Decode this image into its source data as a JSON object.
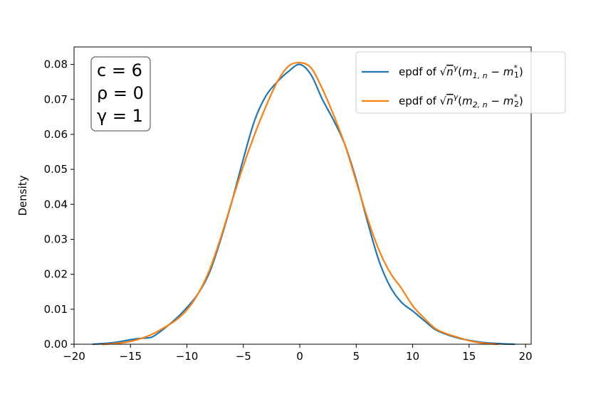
{
  "chart_data": {
    "type": "line",
    "ylabel": "Density",
    "xlabel": "",
    "title": "",
    "xlim": [
      -20,
      20.5
    ],
    "ylim": [
      0,
      0.085
    ],
    "x_ticks": [
      -20,
      -15,
      -10,
      -5,
      0,
      5,
      10,
      15,
      20
    ],
    "x_tick_labels": [
      "−20",
      "−15",
      "−10",
      "−5",
      "0",
      "5",
      "10",
      "15",
      "20"
    ],
    "y_ticks": [
      0,
      0.01,
      0.02,
      0.03,
      0.04,
      0.05,
      0.06,
      0.07,
      0.08
    ],
    "y_tick_labels": [
      "0.00",
      "0.01",
      "0.02",
      "0.03",
      "0.04",
      "0.05",
      "0.06",
      "0.07",
      "0.08"
    ],
    "grid": false,
    "legend_position": "top-right",
    "annotation": {
      "lines": [
        "c = 6",
        "ρ = 0",
        "γ = 1"
      ]
    },
    "series": [
      {
        "name": "epdf of √nγ(m1,n − m1*)",
        "legend_label": {
          "prefix": "epdf of ",
          "sub": "1, n",
          "star_sub": "1"
        },
        "color": "#1f77b4",
        "x": [
          -18.3,
          -17,
          -16,
          -15,
          -14,
          -13.5,
          -13,
          -12,
          -11,
          -10,
          -9,
          -8,
          -7,
          -6,
          -5,
          -4,
          -3,
          -2,
          -1,
          0,
          1,
          2,
          3,
          4,
          5,
          6,
          7,
          8,
          9,
          10,
          11,
          12,
          13,
          14,
          15,
          16,
          17,
          18,
          19
        ],
        "y": [
          0.0,
          0.0003,
          0.0007,
          0.0013,
          0.0017,
          0.0018,
          0.0022,
          0.0045,
          0.0072,
          0.0105,
          0.0145,
          0.0205,
          0.03,
          0.041,
          0.053,
          0.064,
          0.071,
          0.075,
          0.078,
          0.08,
          0.077,
          0.07,
          0.064,
          0.057,
          0.047,
          0.035,
          0.024,
          0.0165,
          0.012,
          0.0095,
          0.0068,
          0.0042,
          0.0028,
          0.0018,
          0.0011,
          0.0006,
          0.0003,
          0.0001,
          0.0
        ]
      },
      {
        "name": "epdf of √nγ(m2,n − m2*)",
        "legend_label": {
          "prefix": "epdf of ",
          "sub": "2, n",
          "star_sub": "2"
        },
        "color": "#ff7f0e",
        "x": [
          -17.5,
          -16,
          -15,
          -14,
          -13,
          -12,
          -11,
          -10,
          -9,
          -8,
          -7,
          -6,
          -5,
          -4,
          -3,
          -2,
          -1,
          0,
          1,
          2,
          3,
          4,
          5,
          6,
          7,
          8,
          9,
          10,
          11,
          12,
          13,
          14,
          15,
          16,
          17.5
        ],
        "y": [
          0.0,
          0.0003,
          0.0008,
          0.0017,
          0.003,
          0.0048,
          0.0068,
          0.0098,
          0.0145,
          0.0212,
          0.0305,
          0.041,
          0.051,
          0.06,
          0.068,
          0.075,
          0.0795,
          0.0805,
          0.079,
          0.073,
          0.0655,
          0.057,
          0.0465,
          0.036,
          0.027,
          0.0205,
          0.016,
          0.011,
          0.0075,
          0.0045,
          0.003,
          0.002,
          0.001,
          0.0004,
          0.0
        ]
      }
    ]
  }
}
